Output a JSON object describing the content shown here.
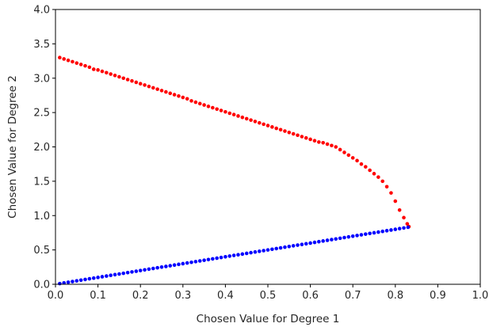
{
  "chart_data": {
    "type": "scatter",
    "title": "",
    "xlabel": "Chosen Value for Degree 1",
    "ylabel": "Chosen Value for Degree 2",
    "xlim": [
      0.0,
      1.0
    ],
    "ylim": [
      0.0,
      4.0
    ],
    "x_ticks": [
      "0.0",
      "0.1",
      "0.2",
      "0.3",
      "0.4",
      "0.5",
      "0.6",
      "0.7",
      "0.8",
      "0.9",
      "1.0"
    ],
    "y_ticks": [
      "0.0",
      "0.5",
      "1.0",
      "1.5",
      "2.0",
      "2.5",
      "3.0",
      "3.5",
      "4.0"
    ],
    "grid": false,
    "series": [
      {
        "color": "#ff0000",
        "marker": "dot",
        "points": [
          [
            0.01,
            3.3
          ],
          [
            0.02,
            3.28
          ],
          [
            0.03,
            3.26
          ],
          [
            0.04,
            3.24
          ],
          [
            0.05,
            3.22
          ],
          [
            0.06,
            3.2
          ],
          [
            0.07,
            3.18
          ],
          [
            0.08,
            3.16
          ],
          [
            0.09,
            3.13
          ],
          [
            0.1,
            3.12
          ],
          [
            0.11,
            3.1
          ],
          [
            0.12,
            3.08
          ],
          [
            0.13,
            3.06
          ],
          [
            0.14,
            3.04
          ],
          [
            0.15,
            3.02
          ],
          [
            0.16,
            3.0
          ],
          [
            0.17,
            2.98
          ],
          [
            0.18,
            2.96
          ],
          [
            0.19,
            2.94
          ],
          [
            0.2,
            2.92
          ],
          [
            0.21,
            2.9
          ],
          [
            0.22,
            2.88
          ],
          [
            0.23,
            2.86
          ],
          [
            0.24,
            2.84
          ],
          [
            0.25,
            2.82
          ],
          [
            0.26,
            2.8
          ],
          [
            0.27,
            2.78
          ],
          [
            0.28,
            2.76
          ],
          [
            0.29,
            2.74
          ],
          [
            0.3,
            2.72
          ],
          [
            0.31,
            2.7
          ],
          [
            0.32,
            2.67
          ],
          [
            0.33,
            2.65
          ],
          [
            0.34,
            2.63
          ],
          [
            0.35,
            2.61
          ],
          [
            0.36,
            2.59
          ],
          [
            0.37,
            2.57
          ],
          [
            0.38,
            2.55
          ],
          [
            0.39,
            2.53
          ],
          [
            0.4,
            2.51
          ],
          [
            0.41,
            2.49
          ],
          [
            0.42,
            2.47
          ],
          [
            0.43,
            2.45
          ],
          [
            0.44,
            2.43
          ],
          [
            0.45,
            2.41
          ],
          [
            0.46,
            2.39
          ],
          [
            0.47,
            2.37
          ],
          [
            0.48,
            2.35
          ],
          [
            0.49,
            2.33
          ],
          [
            0.5,
            2.31
          ],
          [
            0.51,
            2.29
          ],
          [
            0.52,
            2.27
          ],
          [
            0.53,
            2.25
          ],
          [
            0.54,
            2.23
          ],
          [
            0.55,
            2.21
          ],
          [
            0.56,
            2.19
          ],
          [
            0.57,
            2.17
          ],
          [
            0.58,
            2.15
          ],
          [
            0.59,
            2.13
          ],
          [
            0.6,
            2.11
          ],
          [
            0.61,
            2.09
          ],
          [
            0.62,
            2.07
          ],
          [
            0.63,
            2.06
          ],
          [
            0.64,
            2.04
          ],
          [
            0.65,
            2.02
          ],
          [
            0.66,
            2.0
          ],
          [
            0.67,
            1.96
          ],
          [
            0.68,
            1.92
          ],
          [
            0.69,
            1.88
          ],
          [
            0.7,
            1.84
          ],
          [
            0.71,
            1.8
          ],
          [
            0.72,
            1.75
          ],
          [
            0.73,
            1.71
          ],
          [
            0.74,
            1.66
          ],
          [
            0.75,
            1.61
          ],
          [
            0.76,
            1.56
          ],
          [
            0.77,
            1.5
          ],
          [
            0.78,
            1.42
          ],
          [
            0.79,
            1.33
          ],
          [
            0.8,
            1.21
          ],
          [
            0.81,
            1.08
          ],
          [
            0.82,
            0.97
          ],
          [
            0.828,
            0.88
          ],
          [
            0.832,
            0.84
          ]
        ]
      },
      {
        "color": "#0000ff",
        "marker": "dot",
        "points": [
          [
            0.01,
            0.01
          ],
          [
            0.02,
            0.02
          ],
          [
            0.03,
            0.03
          ],
          [
            0.04,
            0.04
          ],
          [
            0.05,
            0.05
          ],
          [
            0.06,
            0.06
          ],
          [
            0.07,
            0.07
          ],
          [
            0.08,
            0.08
          ],
          [
            0.09,
            0.09
          ],
          [
            0.1,
            0.1
          ],
          [
            0.11,
            0.11
          ],
          [
            0.12,
            0.12
          ],
          [
            0.13,
            0.13
          ],
          [
            0.14,
            0.14
          ],
          [
            0.15,
            0.15
          ],
          [
            0.16,
            0.16
          ],
          [
            0.17,
            0.17
          ],
          [
            0.18,
            0.18
          ],
          [
            0.19,
            0.19
          ],
          [
            0.2,
            0.2
          ],
          [
            0.21,
            0.21
          ],
          [
            0.22,
            0.22
          ],
          [
            0.23,
            0.23
          ],
          [
            0.24,
            0.24
          ],
          [
            0.25,
            0.25
          ],
          [
            0.26,
            0.26
          ],
          [
            0.27,
            0.27
          ],
          [
            0.28,
            0.28
          ],
          [
            0.29,
            0.29
          ],
          [
            0.3,
            0.3
          ],
          [
            0.31,
            0.31
          ],
          [
            0.32,
            0.32
          ],
          [
            0.33,
            0.33
          ],
          [
            0.34,
            0.34
          ],
          [
            0.35,
            0.35
          ],
          [
            0.36,
            0.36
          ],
          [
            0.37,
            0.37
          ],
          [
            0.38,
            0.38
          ],
          [
            0.39,
            0.39
          ],
          [
            0.4,
            0.4
          ],
          [
            0.41,
            0.41
          ],
          [
            0.42,
            0.42
          ],
          [
            0.43,
            0.43
          ],
          [
            0.44,
            0.44
          ],
          [
            0.45,
            0.45
          ],
          [
            0.46,
            0.46
          ],
          [
            0.47,
            0.47
          ],
          [
            0.48,
            0.48
          ],
          [
            0.49,
            0.49
          ],
          [
            0.5,
            0.5
          ],
          [
            0.51,
            0.51
          ],
          [
            0.52,
            0.52
          ],
          [
            0.53,
            0.53
          ],
          [
            0.54,
            0.54
          ],
          [
            0.55,
            0.55
          ],
          [
            0.56,
            0.56
          ],
          [
            0.57,
            0.57
          ],
          [
            0.58,
            0.58
          ],
          [
            0.59,
            0.59
          ],
          [
            0.6,
            0.6
          ],
          [
            0.61,
            0.61
          ],
          [
            0.62,
            0.62
          ],
          [
            0.63,
            0.63
          ],
          [
            0.64,
            0.64
          ],
          [
            0.65,
            0.65
          ],
          [
            0.66,
            0.66
          ],
          [
            0.67,
            0.67
          ],
          [
            0.68,
            0.68
          ],
          [
            0.69,
            0.69
          ],
          [
            0.7,
            0.7
          ],
          [
            0.71,
            0.71
          ],
          [
            0.72,
            0.72
          ],
          [
            0.73,
            0.73
          ],
          [
            0.74,
            0.74
          ],
          [
            0.75,
            0.75
          ],
          [
            0.76,
            0.76
          ],
          [
            0.77,
            0.77
          ],
          [
            0.78,
            0.78
          ],
          [
            0.79,
            0.79
          ],
          [
            0.8,
            0.8
          ],
          [
            0.81,
            0.81
          ],
          [
            0.82,
            0.82
          ],
          [
            0.83,
            0.83
          ]
        ]
      }
    ]
  }
}
